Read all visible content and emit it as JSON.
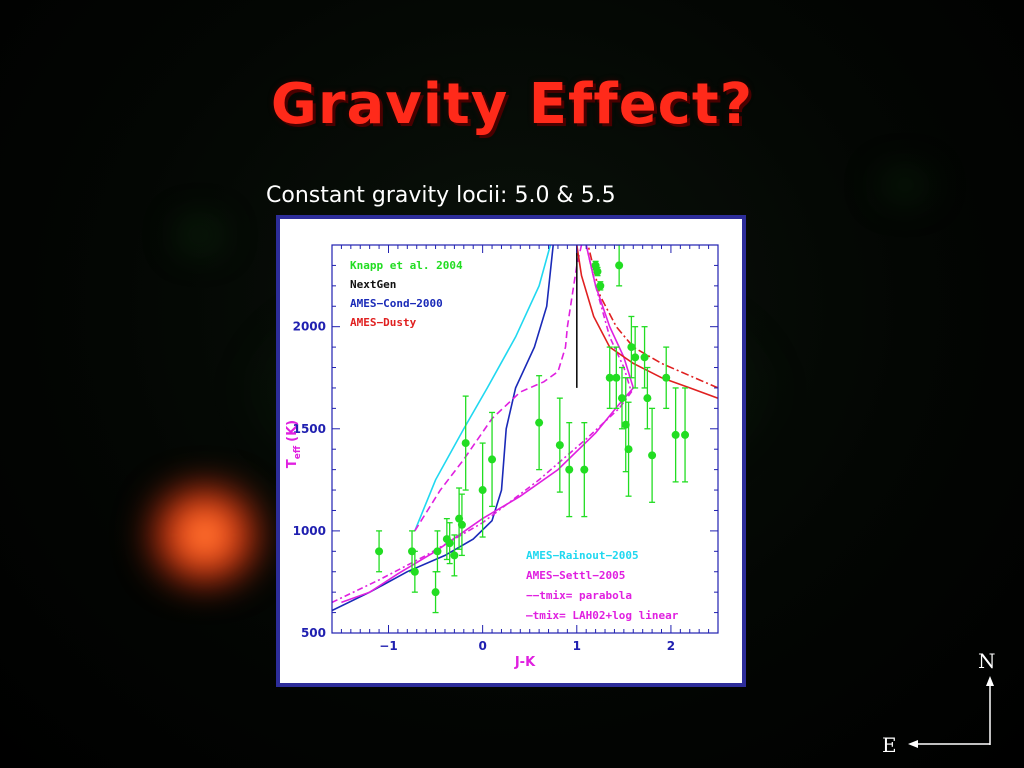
{
  "slide": {
    "title": "Gravity Effect?",
    "subtitle": "Constant gravity locii: 5.0 & 5.5"
  },
  "compass": {
    "north": "N",
    "east": "E"
  },
  "chart_data": {
    "type": "scatter",
    "xlabel": "J-K",
    "ylabel": "T_eff (K)",
    "ylabel_main": "T",
    "ylabel_sub": "eff",
    "ylabel_unit": "(K)",
    "xlim": [
      -1.6,
      2.5
    ],
    "ylim": [
      500,
      2400
    ],
    "xticks": [
      -1,
      0,
      1,
      2
    ],
    "yticks": [
      500,
      1000,
      1500,
      2000
    ],
    "colors": {
      "knapp": "#22dd22",
      "nextgen": "#111111",
      "cond": "#1a2ab8",
      "dusty": "#e02020",
      "rainout": "#20d8f0",
      "settl": "#e020e0"
    },
    "legend_top": [
      {
        "label": "Knapp et al. 2004",
        "color": "#22dd22"
      },
      {
        "label": "NextGen",
        "color": "#111111"
      },
      {
        "label": "AMES−Cond−2000",
        "color": "#1a2ab8"
      },
      {
        "label": "AMES−Dusty",
        "color": "#e02020"
      }
    ],
    "legend_bottom": [
      {
        "label": "AMES−Rainout−2005",
        "color": "#20d8f0"
      },
      {
        "label": "AMES−Settl−2005",
        "color": "#e020e0"
      },
      {
        "label": "−−tmix= parabola",
        "color": "#e020e0"
      },
      {
        "label": "—tmix= LAH02+log linear",
        "color": "#e020e0"
      }
    ],
    "series": [
      {
        "name": "Knapp et al. 2004",
        "points": [
          {
            "x": -1.1,
            "y": 900,
            "err": 100
          },
          {
            "x": -0.75,
            "y": 900,
            "err": 100
          },
          {
            "x": -0.72,
            "y": 800,
            "err": 100
          },
          {
            "x": -0.5,
            "y": 700,
            "err": 100
          },
          {
            "x": -0.48,
            "y": 900,
            "err": 100
          },
          {
            "x": -0.38,
            "y": 960,
            "err": 100
          },
          {
            "x": -0.35,
            "y": 940,
            "err": 100
          },
          {
            "x": -0.3,
            "y": 880,
            "err": 100
          },
          {
            "x": -0.25,
            "y": 1060,
            "err": 150
          },
          {
            "x": -0.22,
            "y": 1030,
            "err": 150
          },
          {
            "x": -0.18,
            "y": 1430,
            "err": 230
          },
          {
            "x": 0.0,
            "y": 1200,
            "err": 230
          },
          {
            "x": 0.1,
            "y": 1350,
            "err": 230
          },
          {
            "x": 0.6,
            "y": 1530,
            "err": 230
          },
          {
            "x": 0.82,
            "y": 1420,
            "err": 230
          },
          {
            "x": 0.92,
            "y": 1300,
            "err": 230
          },
          {
            "x": 1.08,
            "y": 1300,
            "err": 230
          },
          {
            "x": 1.2,
            "y": 2300,
            "err": 20
          },
          {
            "x": 1.22,
            "y": 2270,
            "err": 20
          },
          {
            "x": 1.25,
            "y": 2200,
            "err": 20
          },
          {
            "x": 1.35,
            "y": 1750,
            "err": 150
          },
          {
            "x": 1.42,
            "y": 1750,
            "err": 150
          },
          {
            "x": 1.48,
            "y": 1650,
            "err": 150
          },
          {
            "x": 1.52,
            "y": 1520,
            "err": 230
          },
          {
            "x": 1.55,
            "y": 1400,
            "err": 230
          },
          {
            "x": 1.58,
            "y": 1900,
            "err": 150
          },
          {
            "x": 1.62,
            "y": 1850,
            "err": 150
          },
          {
            "x": 1.72,
            "y": 1850,
            "err": 150
          },
          {
            "x": 1.75,
            "y": 1650,
            "err": 150
          },
          {
            "x": 1.8,
            "y": 1370,
            "err": 230
          },
          {
            "x": 1.95,
            "y": 1750,
            "err": 150
          },
          {
            "x": 2.05,
            "y": 1470,
            "err": 230
          },
          {
            "x": 2.15,
            "y": 1470,
            "err": 230
          },
          {
            "x": 1.45,
            "y": 2300,
            "err": 100
          }
        ]
      }
    ],
    "curves": [
      {
        "name": "AMES-Rainout-2005",
        "color": "#20d8f0",
        "dash": "",
        "points": [
          [
            -0.72,
            1000
          ],
          [
            -0.5,
            1250
          ],
          [
            -0.2,
            1500
          ],
          [
            0.05,
            1700
          ],
          [
            0.35,
            1950
          ],
          [
            0.6,
            2200
          ],
          [
            0.72,
            2400
          ]
        ]
      },
      {
        "name": "AMES-Cond-2000",
        "color": "#1a2ab8",
        "dash": "",
        "points": [
          [
            -1.6,
            610
          ],
          [
            -1.2,
            700
          ],
          [
            -0.8,
            800
          ],
          [
            -0.4,
            880
          ],
          [
            -0.1,
            960
          ],
          [
            0.1,
            1050
          ],
          [
            0.2,
            1200
          ],
          [
            0.25,
            1500
          ],
          [
            0.35,
            1700
          ],
          [
            0.55,
            1900
          ],
          [
            0.68,
            2100
          ],
          [
            0.75,
            2400
          ]
        ]
      },
      {
        "name": "AMES-Settl-2005 parabola",
        "color": "#e020e0",
        "dash": "7,4",
        "points": [
          [
            -0.72,
            1000
          ],
          [
            -0.45,
            1200
          ],
          [
            -0.2,
            1350
          ],
          [
            0.1,
            1550
          ],
          [
            0.4,
            1680
          ],
          [
            0.65,
            1730
          ],
          [
            0.8,
            1780
          ],
          [
            0.88,
            1900
          ],
          [
            0.9,
            2000
          ],
          [
            0.95,
            2150
          ],
          [
            1.0,
            2300
          ],
          [
            1.05,
            2400
          ]
        ]
      },
      {
        "name": "AMES-Settl-2005 log linear",
        "color": "#e020e0",
        "dash": "",
        "points": [
          [
            -1.5,
            650
          ],
          [
            -1.2,
            700
          ],
          [
            -0.9,
            790
          ],
          [
            -0.5,
            900
          ],
          [
            0.0,
            1060
          ],
          [
            0.4,
            1170
          ],
          [
            0.8,
            1300
          ],
          [
            1.2,
            1480
          ],
          [
            1.45,
            1620
          ],
          [
            1.6,
            1700
          ],
          [
            1.5,
            1850
          ],
          [
            1.35,
            2000
          ],
          [
            1.2,
            2200
          ],
          [
            1.1,
            2400
          ]
        ]
      },
      {
        "name": "AMES-Settl-2005 dash-dot",
        "color": "#e020e0",
        "dash": "6,3,2,3",
        "points": [
          [
            -1.6,
            650
          ],
          [
            -1.1,
            760
          ],
          [
            -0.6,
            880
          ],
          [
            0.0,
            1040
          ],
          [
            0.6,
            1250
          ],
          [
            1.1,
            1450
          ],
          [
            1.45,
            1600
          ],
          [
            1.58,
            1680
          ],
          [
            1.5,
            1800
          ],
          [
            1.35,
            1950
          ],
          [
            1.2,
            2200
          ],
          [
            1.1,
            2400
          ]
        ]
      },
      {
        "name": "NextGen",
        "color": "#111111",
        "dash": "",
        "points": [
          [
            1.0,
            1700
          ],
          [
            1.0,
            1800
          ],
          [
            1.0,
            2000
          ],
          [
            1.0,
            2200
          ],
          [
            1.0,
            2400
          ]
        ]
      },
      {
        "name": "AMES-Dusty",
        "color": "#e02020",
        "dash": "",
        "points": [
          [
            2.5,
            1650
          ],
          [
            2.2,
            1700
          ],
          [
            1.9,
            1750
          ],
          [
            1.6,
            1820
          ],
          [
            1.35,
            1900
          ],
          [
            1.18,
            2050
          ],
          [
            1.05,
            2250
          ],
          [
            1.0,
            2400
          ]
        ]
      },
      {
        "name": "AMES-Dusty dash-dot",
        "color": "#e02020",
        "dash": "8,3,2,3",
        "points": [
          [
            2.5,
            1700
          ],
          [
            2.2,
            1760
          ],
          [
            1.9,
            1820
          ],
          [
            1.6,
            1900
          ],
          [
            1.42,
            2000
          ],
          [
            1.25,
            2150
          ],
          [
            1.12,
            2400
          ]
        ]
      }
    ]
  }
}
